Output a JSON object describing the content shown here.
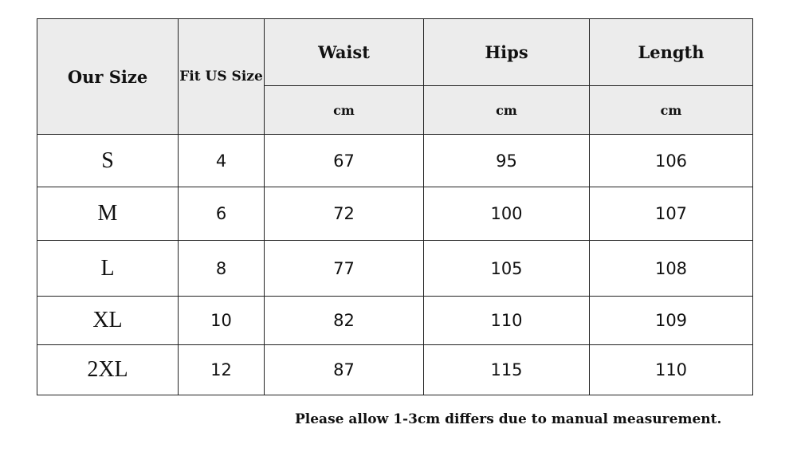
{
  "table": {
    "header": {
      "our_size": "Our Size",
      "fit_us_size": "Fit US Size",
      "waist": "Waist",
      "hips": "Hips",
      "length": "Length",
      "unit_waist": "cm",
      "unit_hips": "cm",
      "unit_length": "cm"
    },
    "rows": [
      {
        "size": "S",
        "us": "4",
        "waist": "67",
        "hips": "95",
        "length": "106"
      },
      {
        "size": "M",
        "us": "6",
        "waist": "72",
        "hips": "100",
        "length": "107"
      },
      {
        "size": "L",
        "us": "8",
        "waist": "77",
        "hips": "105",
        "length": "108"
      },
      {
        "size": "XL",
        "us": "10",
        "waist": "82",
        "hips": "110",
        "length": "109"
      },
      {
        "size": "2XL",
        "us": "12",
        "waist": "87",
        "hips": "115",
        "length": "110"
      }
    ]
  },
  "note": "Please allow 1-3cm differs due to manual measurement."
}
